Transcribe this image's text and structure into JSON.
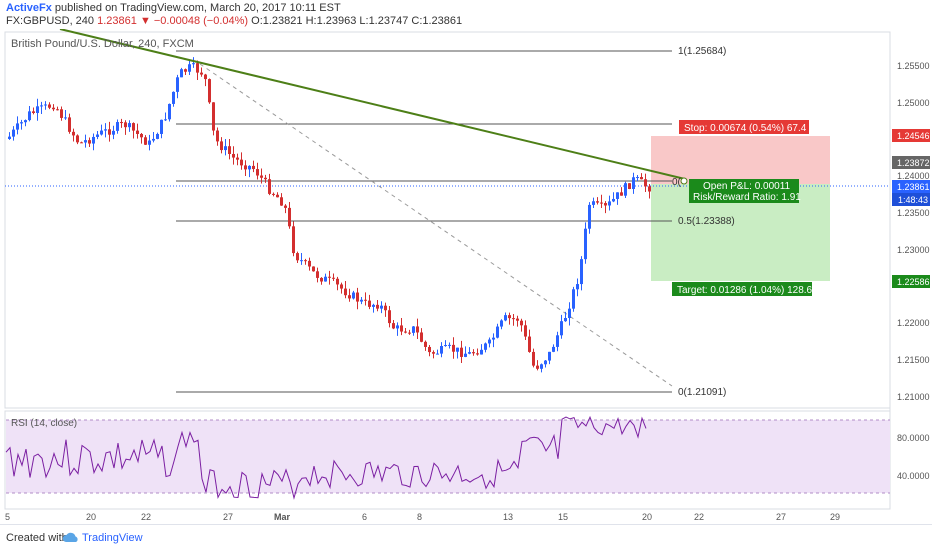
{
  "header": {
    "publisher": "ActiveFx",
    "published_text": " published on TradingView.com, March 20, 2017 10:11 EST",
    "symbol": "FX:GBPUSD, 240",
    "last": "1.23861",
    "change": "▼ −0.00048 (−0.04%)",
    "ohlc": "O:1.23821  H:1.23963  L:1.23747  C:1.23861"
  },
  "chart": {
    "title": "British Pound/U.S. Dollar, 240, FXCM",
    "price_axis": [
      "1.25500",
      "1.25000",
      "1.24000",
      "1.23500",
      "1.23000",
      "1.22000",
      "1.21500",
      "1.21000"
    ],
    "price_badges": {
      "stop": "1.24546",
      "high": "1.23872",
      "last": "1.23861",
      "countdown": "1:48:43",
      "target": "1.22586"
    },
    "fib_labels": {
      "top": "1(1.25684)",
      "mid": "0.5(1.23388)",
      "bottom": "0(1.21091)",
      "zero_partial": "0("
    },
    "position": {
      "stop": "Stop: 0.00674 (0.54%) 67.4",
      "open_pl": "Open P&L: 0.00011",
      "rr": "Risk/Reward Ratio: 1.91",
      "target": "Target: 0.01286 (1.04%) 128.6"
    },
    "rsi": {
      "label": "RSI (14, close)",
      "axis": [
        "80.0000",
        "40.0000"
      ]
    },
    "time_axis": [
      "5",
      "20",
      "22",
      "27",
      "Mar",
      "6",
      "8",
      "13",
      "15",
      "20",
      "22",
      "27",
      "29"
    ],
    "colors": {
      "up": "#2962ff",
      "down": "#d32f2f",
      "trendline": "#4d7f17",
      "stop_zone": "#f9c8c8",
      "target_zone": "#c9edc3",
      "rsi_band": "#efe2f7",
      "rsi_line": "#7b1fa2"
    }
  },
  "footer": {
    "created": "Created with",
    "brand": "TradingView"
  }
}
